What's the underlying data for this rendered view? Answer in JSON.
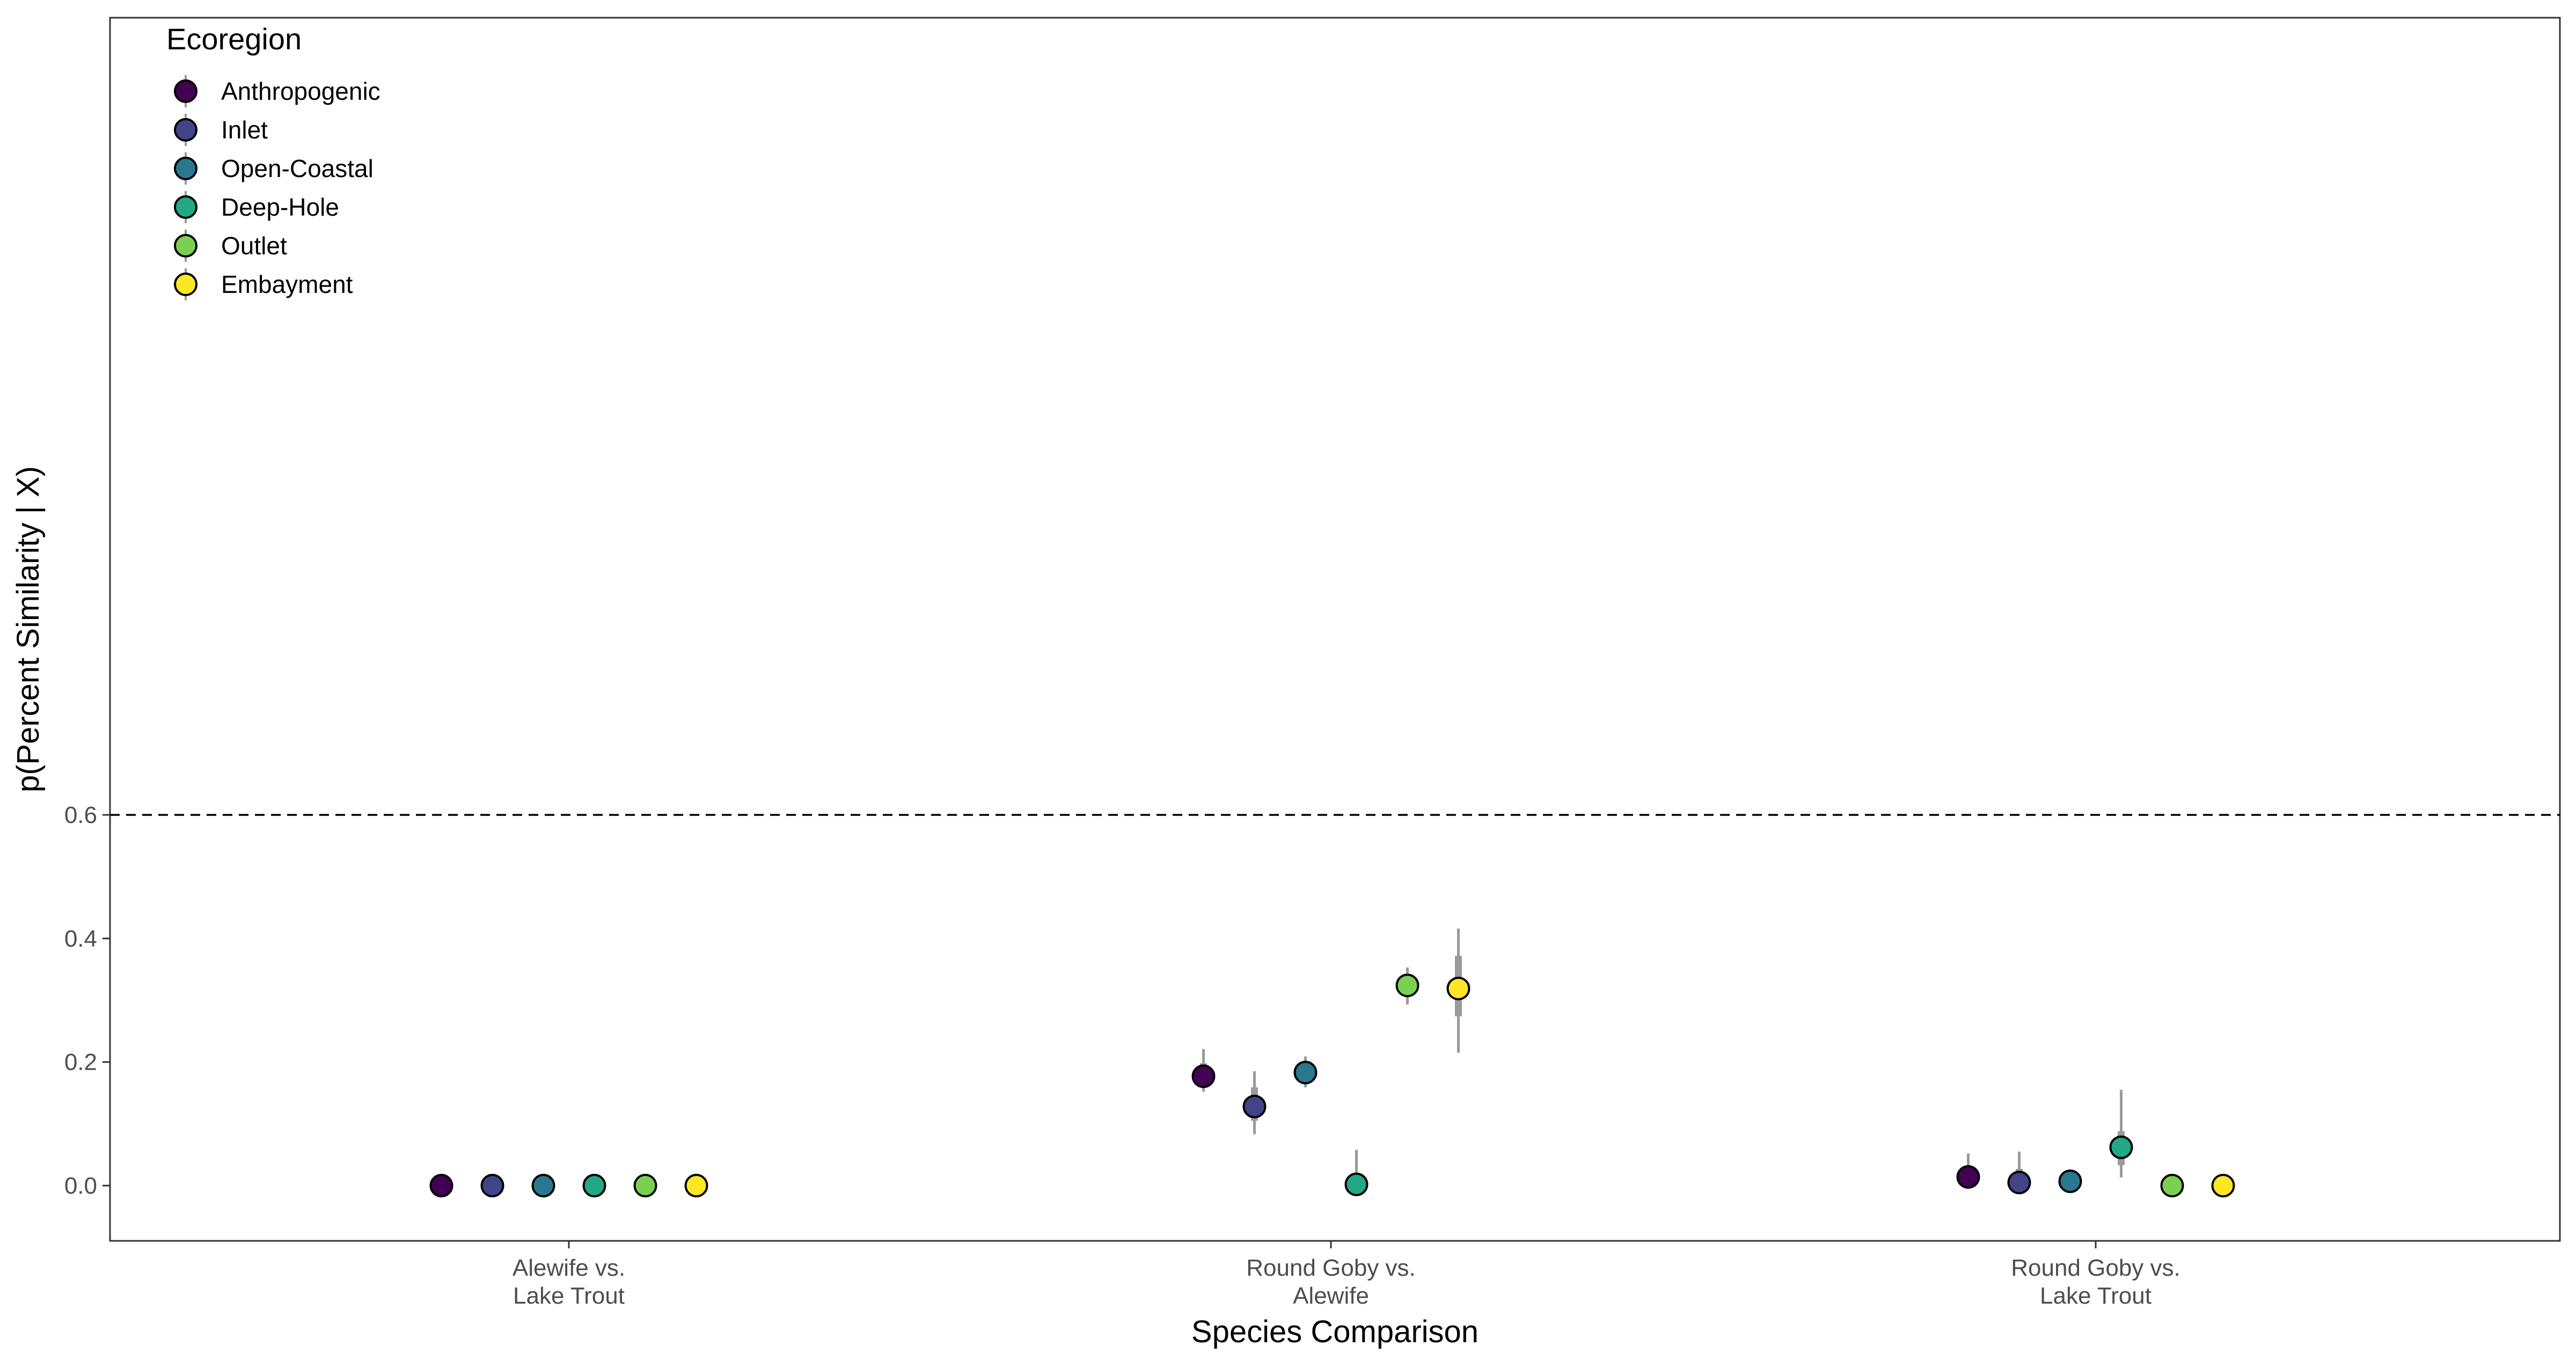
{
  "chart_data": {
    "type": "scatter",
    "xlabel": "Species Comparison",
    "ylabel": "p(Percent Similarity | X)",
    "categories": [
      [
        "Alewife vs.",
        "Lake Trout"
      ],
      [
        "Round Goby vs.",
        "Alewife"
      ],
      [
        "Round Goby vs.",
        "Lake Trout"
      ]
    ],
    "yticks": [
      "0.0",
      "0.2",
      "0.4",
      "0.6"
    ],
    "ylim": [
      -0.03,
      0.63
    ],
    "reference_line": {
      "y": 0.6,
      "style": "dashed"
    },
    "grid": false,
    "legend": {
      "title": "Ecoregion",
      "position": "top-left"
    },
    "series": [
      {
        "name": "Anthropogenic",
        "color": "#440154",
        "points": [
          {
            "category": 0,
            "y": 0.0
          },
          {
            "category": 1,
            "y": 0.177,
            "inner": [
              0.165,
              0.198
            ],
            "outer": [
              0.152,
              0.221
            ]
          },
          {
            "category": 2,
            "y": 0.014,
            "inner": [
              0.004,
              0.03
            ],
            "outer": [
              0.0,
              0.052
            ]
          }
        ]
      },
      {
        "name": "Inlet",
        "color": "#414487",
        "points": [
          {
            "category": 0,
            "y": 0.0
          },
          {
            "category": 1,
            "y": 0.128,
            "inner": [
              0.105,
              0.159
            ],
            "outer": [
              0.083,
              0.185
            ]
          },
          {
            "category": 2,
            "y": 0.005,
            "inner": [
              0.001,
              0.027
            ],
            "outer": [
              0.0,
              0.055
            ]
          }
        ]
      },
      {
        "name": "Open-Coastal",
        "color": "#2A788E",
        "points": [
          {
            "category": 0,
            "y": 0.0
          },
          {
            "category": 1,
            "y": 0.183,
            "inner": [
              0.17,
              0.195
            ],
            "outer": [
              0.159,
              0.209
            ]
          },
          {
            "category": 2,
            "y": 0.007,
            "inner": [
              0.002,
              0.014
            ],
            "outer": [
              0.0,
              0.025
            ]
          }
        ]
      },
      {
        "name": "Deep-Hole",
        "color": "#22A884",
        "points": [
          {
            "category": 0,
            "y": 0.0
          },
          {
            "category": 1,
            "y": 0.002,
            "inner": [
              0.0,
              0.02
            ],
            "outer": [
              0.0,
              0.058
            ]
          },
          {
            "category": 2,
            "y": 0.062,
            "inner": [
              0.033,
              0.088
            ],
            "outer": [
              0.013,
              0.155
            ]
          }
        ]
      },
      {
        "name": "Outlet",
        "color": "#7AD151",
        "points": [
          {
            "category": 0,
            "y": 0.0
          },
          {
            "category": 1,
            "y": 0.324,
            "inner": [
              0.31,
              0.339
            ],
            "outer": [
              0.293,
              0.353
            ]
          },
          {
            "category": 2,
            "y": 0.0
          }
        ]
      },
      {
        "name": "Embayment",
        "color": "#FDE725",
        "points": [
          {
            "category": 0,
            "y": 0.0
          },
          {
            "category": 1,
            "y": 0.319,
            "inner": [
              0.274,
              0.372
            ],
            "outer": [
              0.215,
              0.416
            ]
          },
          {
            "category": 2,
            "y": 0.0
          }
        ]
      }
    ]
  }
}
